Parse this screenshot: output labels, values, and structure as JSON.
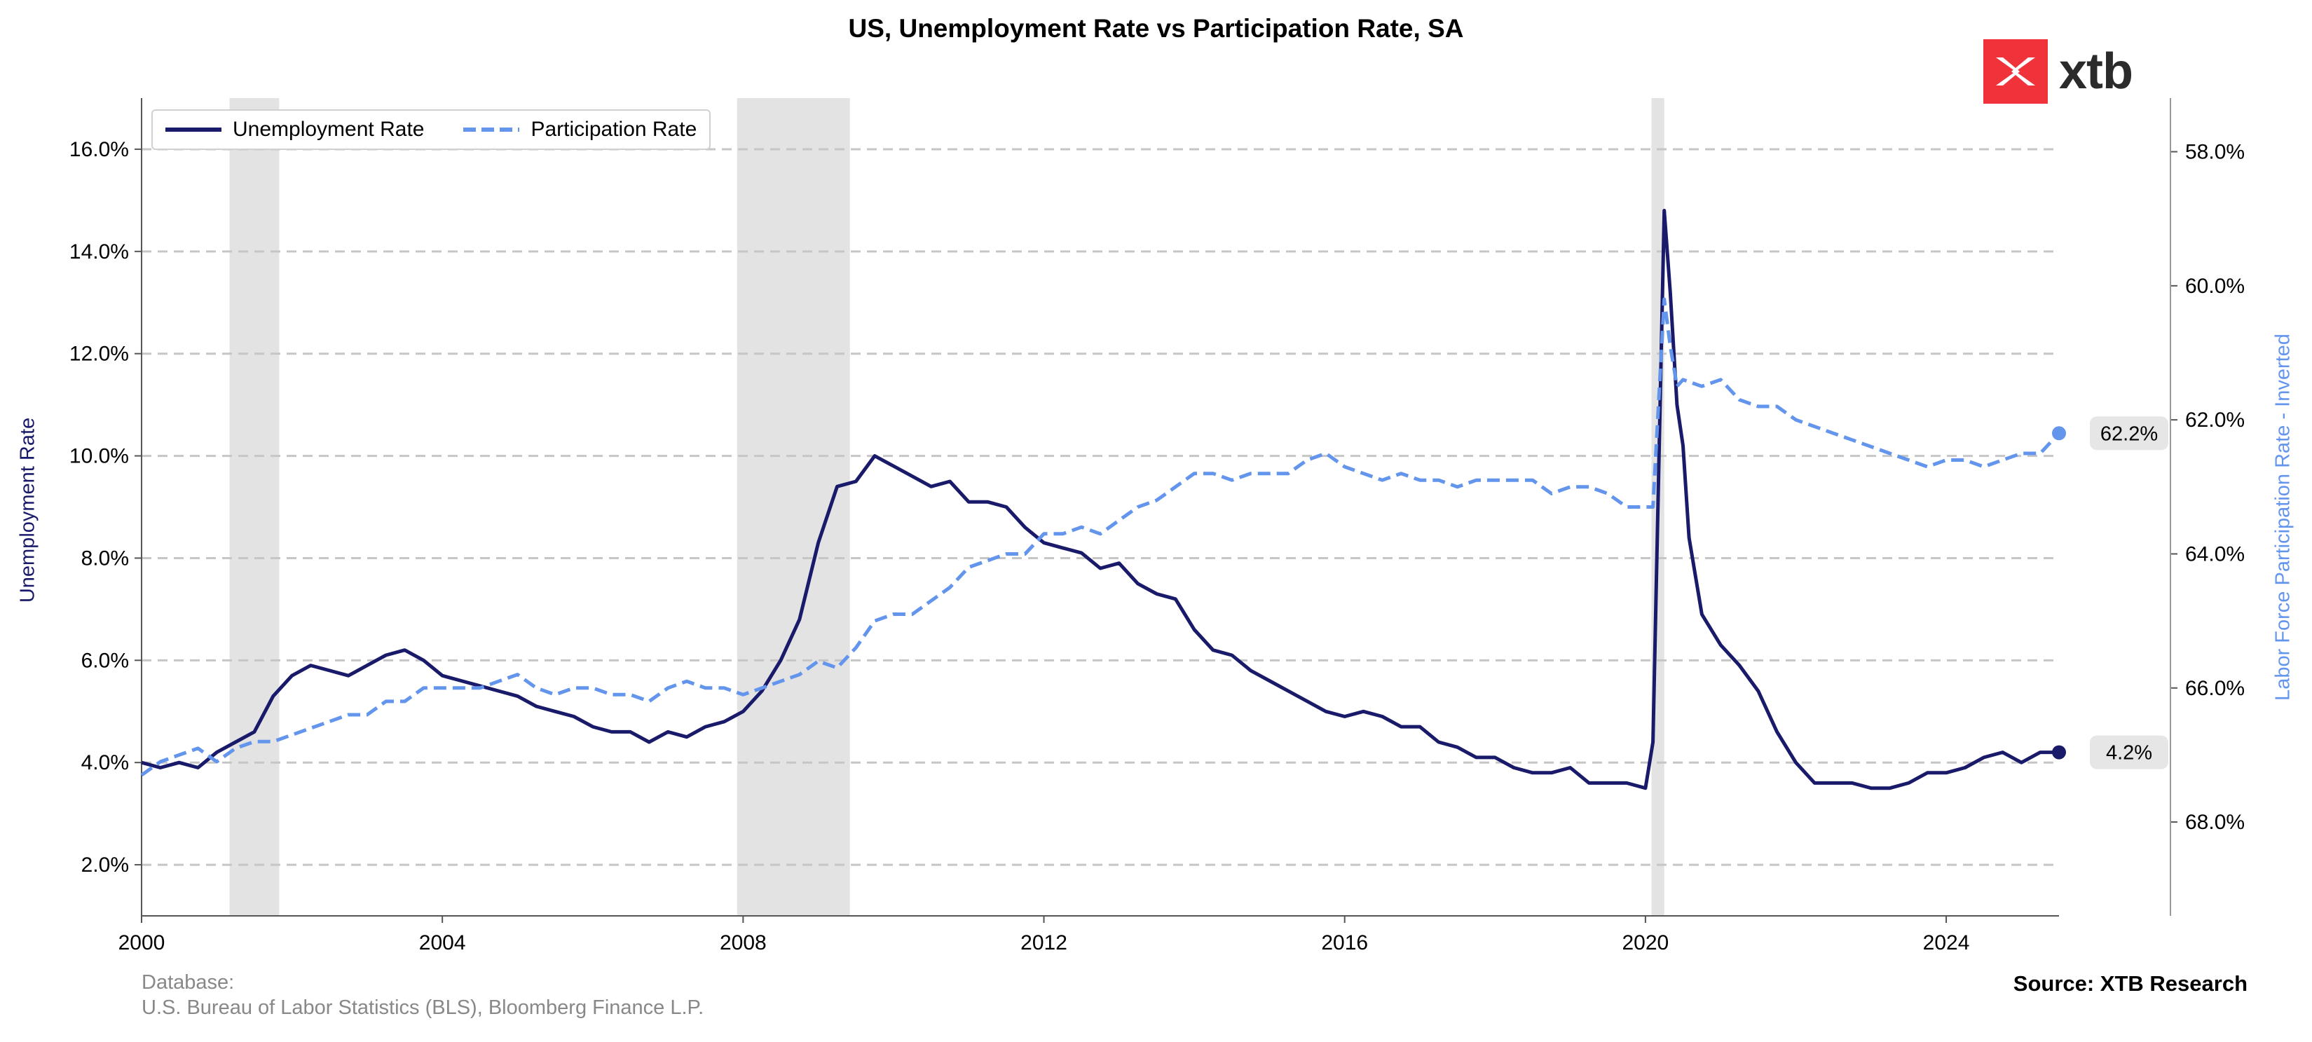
{
  "chart_data": {
    "type": "line",
    "title": "US, Unemployment Rate vs Participation Rate, SA",
    "ylabel": "Unemployment Rate",
    "y2label": "Labor Force Participation Rate - Inverted",
    "ylim": [
      1.0,
      17.0
    ],
    "y2lim": [
      69.4,
      57.2
    ],
    "y2_inverted": true,
    "xlim": [
      2000.0,
      2025.5
    ],
    "x_ticks": [
      "2000",
      "2004",
      "2008",
      "2012",
      "2016",
      "2020",
      "2024"
    ],
    "y_ticks": [
      "2.0%",
      "4.0%",
      "6.0%",
      "8.0%",
      "10.0%",
      "12.0%",
      "14.0%",
      "16.0%"
    ],
    "y2_ticks": [
      "58.0%",
      "60.0%",
      "62.0%",
      "64.0%",
      "66.0%",
      "68.0%"
    ],
    "grid": "horizontal dashed",
    "legend_placement": "top-left",
    "recession_bands": [
      [
        2001.17,
        2001.83
      ],
      [
        2007.92,
        2009.42
      ],
      [
        2020.08,
        2020.25
      ]
    ],
    "series": [
      {
        "name": "Unemployment Rate",
        "color": "#1a1a6b",
        "style": "solid",
        "axis": "left",
        "x": [
          2000.0,
          2000.25,
          2000.5,
          2000.75,
          2001.0,
          2001.25,
          2001.5,
          2001.75,
          2002.0,
          2002.25,
          2002.5,
          2002.75,
          2003.0,
          2003.25,
          2003.5,
          2003.75,
          2004.0,
          2004.25,
          2004.5,
          2004.75,
          2005.0,
          2005.25,
          2005.5,
          2005.75,
          2006.0,
          2006.25,
          2006.5,
          2006.75,
          2007.0,
          2007.25,
          2007.5,
          2007.75,
          2008.0,
          2008.25,
          2008.5,
          2008.75,
          2009.0,
          2009.25,
          2009.5,
          2009.75,
          2010.0,
          2010.25,
          2010.5,
          2010.75,
          2011.0,
          2011.25,
          2011.5,
          2011.75,
          2012.0,
          2012.25,
          2012.5,
          2012.75,
          2013.0,
          2013.25,
          2013.5,
          2013.75,
          2014.0,
          2014.25,
          2014.5,
          2014.75,
          2015.0,
          2015.25,
          2015.5,
          2015.75,
          2016.0,
          2016.25,
          2016.5,
          2016.75,
          2017.0,
          2017.25,
          2017.5,
          2017.75,
          2018.0,
          2018.25,
          2018.5,
          2018.75,
          2019.0,
          2019.25,
          2019.5,
          2019.75,
          2020.0,
          2020.1,
          2020.25,
          2020.33,
          2020.42,
          2020.5,
          2020.58,
          2020.75,
          2021.0,
          2021.25,
          2021.5,
          2021.75,
          2022.0,
          2022.25,
          2022.5,
          2022.75,
          2023.0,
          2023.25,
          2023.5,
          2023.75,
          2024.0,
          2024.25,
          2024.5,
          2024.75,
          2025.0,
          2025.25,
          2025.5
        ],
        "values": [
          4.0,
          3.9,
          4.0,
          3.9,
          4.2,
          4.4,
          4.6,
          5.3,
          5.7,
          5.9,
          5.8,
          5.7,
          5.9,
          6.1,
          6.2,
          6.0,
          5.7,
          5.6,
          5.5,
          5.4,
          5.3,
          5.1,
          5.0,
          4.9,
          4.7,
          4.6,
          4.6,
          4.4,
          4.6,
          4.5,
          4.7,
          4.8,
          5.0,
          5.4,
          6.0,
          6.8,
          8.3,
          9.4,
          9.5,
          10.0,
          9.8,
          9.6,
          9.4,
          9.5,
          9.1,
          9.1,
          9.0,
          8.6,
          8.3,
          8.2,
          8.1,
          7.8,
          7.9,
          7.5,
          7.3,
          7.2,
          6.6,
          6.2,
          6.1,
          5.8,
          5.6,
          5.4,
          5.2,
          5.0,
          4.9,
          5.0,
          4.9,
          4.7,
          4.7,
          4.4,
          4.3,
          4.1,
          4.1,
          3.9,
          3.8,
          3.8,
          3.9,
          3.6,
          3.6,
          3.6,
          3.5,
          4.4,
          14.8,
          13.2,
          11.0,
          10.2,
          8.4,
          6.9,
          6.3,
          5.9,
          5.4,
          4.6,
          4.0,
          3.6,
          3.6,
          3.6,
          3.5,
          3.5,
          3.6,
          3.8,
          3.8,
          3.9,
          4.1,
          4.2,
          4.0,
          4.2,
          4.2
        ]
      },
      {
        "name": "Participation Rate",
        "color": "#6495ed",
        "style": "dashed",
        "axis": "right",
        "x": [
          2000.0,
          2000.25,
          2000.5,
          2000.75,
          2001.0,
          2001.25,
          2001.5,
          2001.75,
          2002.0,
          2002.25,
          2002.5,
          2002.75,
          2003.0,
          2003.25,
          2003.5,
          2003.75,
          2004.0,
          2004.25,
          2004.5,
          2004.75,
          2005.0,
          2005.25,
          2005.5,
          2005.75,
          2006.0,
          2006.25,
          2006.5,
          2006.75,
          2007.0,
          2007.25,
          2007.5,
          2007.75,
          2008.0,
          2008.25,
          2008.5,
          2008.75,
          2009.0,
          2009.25,
          2009.5,
          2009.75,
          2010.0,
          2010.25,
          2010.5,
          2010.75,
          2011.0,
          2011.25,
          2011.5,
          2011.75,
          2012.0,
          2012.25,
          2012.5,
          2012.75,
          2013.0,
          2013.25,
          2013.5,
          2013.75,
          2014.0,
          2014.25,
          2014.5,
          2014.75,
          2015.0,
          2015.25,
          2015.5,
          2015.75,
          2016.0,
          2016.25,
          2016.5,
          2016.75,
          2017.0,
          2017.25,
          2017.5,
          2017.75,
          2018.0,
          2018.25,
          2018.5,
          2018.75,
          2019.0,
          2019.25,
          2019.5,
          2019.75,
          2020.0,
          2020.1,
          2020.25,
          2020.33,
          2020.42,
          2020.5,
          2020.75,
          2021.0,
          2021.25,
          2021.5,
          2021.75,
          2022.0,
          2022.25,
          2022.5,
          2022.75,
          2023.0,
          2023.25,
          2023.5,
          2023.75,
          2024.0,
          2024.25,
          2024.5,
          2024.75,
          2025.0,
          2025.25,
          2025.5
        ],
        "values": [
          67.3,
          67.1,
          67.0,
          66.9,
          67.1,
          66.9,
          66.8,
          66.8,
          66.7,
          66.6,
          66.5,
          66.4,
          66.4,
          66.2,
          66.2,
          66.0,
          66.0,
          66.0,
          66.0,
          65.9,
          65.8,
          66.0,
          66.1,
          66.0,
          66.0,
          66.1,
          66.1,
          66.2,
          66.0,
          65.9,
          66.0,
          66.0,
          66.1,
          66.0,
          65.9,
          65.8,
          65.6,
          65.7,
          65.4,
          65.0,
          64.9,
          64.9,
          64.7,
          64.5,
          64.2,
          64.1,
          64.0,
          64.0,
          63.7,
          63.7,
          63.6,
          63.7,
          63.5,
          63.3,
          63.2,
          63.0,
          62.8,
          62.8,
          62.9,
          62.8,
          62.8,
          62.8,
          62.6,
          62.5,
          62.7,
          62.8,
          62.9,
          62.8,
          62.9,
          62.9,
          63.0,
          62.9,
          62.9,
          62.9,
          62.9,
          63.1,
          63.0,
          63.0,
          63.1,
          63.3,
          63.3,
          63.3,
          60.2,
          60.9,
          61.5,
          61.4,
          61.5,
          61.4,
          61.7,
          61.8,
          61.8,
          62.0,
          62.1,
          62.2,
          62.3,
          62.4,
          62.5,
          62.6,
          62.7,
          62.6,
          62.6,
          62.7,
          62.6,
          62.5,
          62.5,
          62.2
        ]
      }
    ],
    "end_labels": {
      "unemployment": "4.2%",
      "participation": "62.2%"
    }
  },
  "logo": {
    "text": "xtb",
    "brand_color": "#f0333b"
  },
  "footer": {
    "database_label": "Database:",
    "database_sources": "U.S. Bureau of Labor Statistics (BLS), Bloomberg Finance L.P.",
    "source": "Source: XTB Research"
  }
}
